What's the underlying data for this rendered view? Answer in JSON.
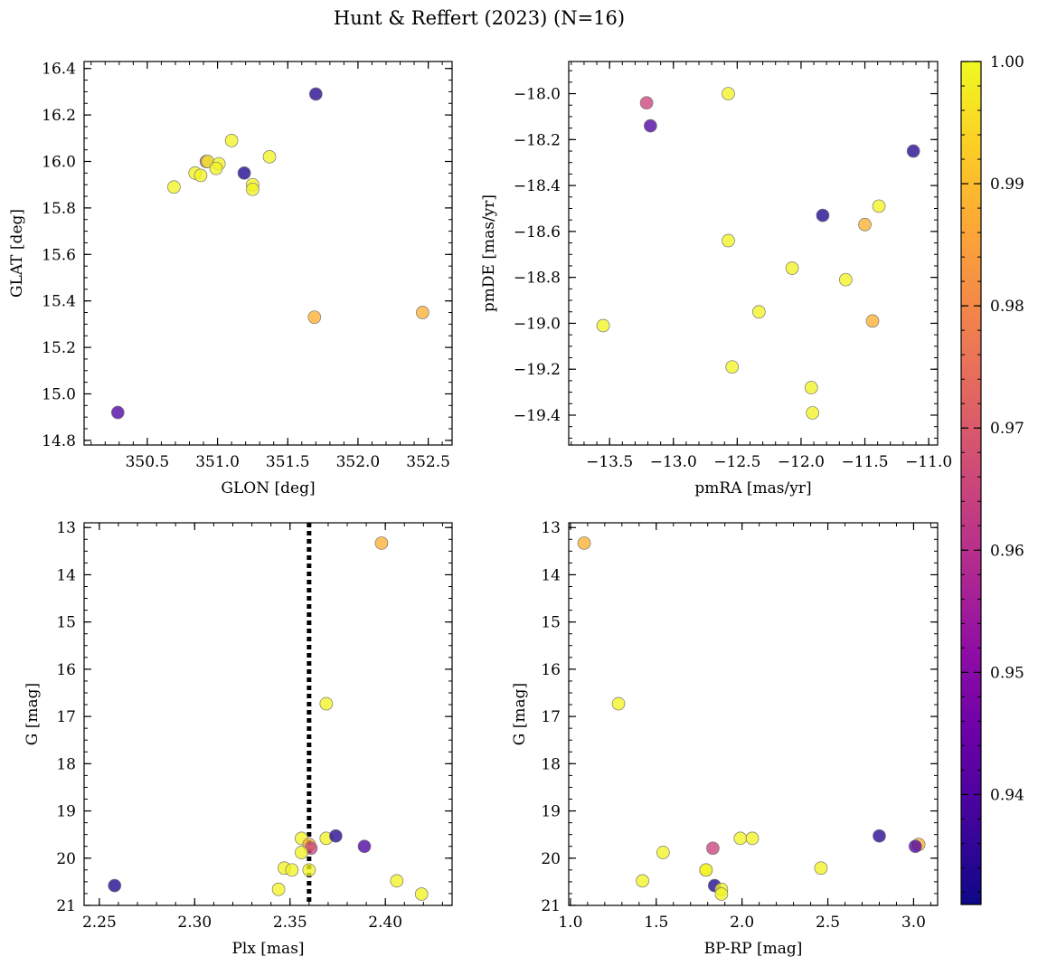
{
  "figure_title": "Hunt & Reffert (2023) (N=16)",
  "colors": {
    "cmap": [
      "#0d0887",
      "#41049d",
      "#6a00a8",
      "#8f0da4",
      "#b12a90",
      "#cb4679",
      "#e16462",
      "#f2844b",
      "#fca636",
      "#fcce25",
      "#f0f921"
    ],
    "marker_alpha": 0.78,
    "marker_edge": "#777777",
    "vline": "#000000"
  },
  "colorbar": {
    "min": 0.931,
    "max": 1.0,
    "ticks": [
      0.94,
      0.95,
      0.96,
      0.97,
      0.98,
      0.99,
      1.0
    ],
    "tick_labels": [
      "0.94",
      "0.95",
      "0.96",
      "0.97",
      "0.98",
      "0.99",
      "1.00"
    ]
  },
  "chart_data": [
    {
      "id": "tl",
      "type": "scatter",
      "xlabel": "GLON [deg]",
      "ylabel": "GLAT [deg]",
      "xlim": [
        350.05,
        352.67
      ],
      "ylim": [
        14.78,
        16.43
      ],
      "invert_y": false,
      "xticks": [
        350.5,
        351.0,
        351.5,
        352.0,
        352.5
      ],
      "xtick_labels": [
        "350.5",
        "351.0",
        "351.5",
        "352.0",
        "352.5"
      ],
      "xminor_step": 0.1,
      "yticks": [
        14.8,
        15.0,
        15.2,
        15.4,
        15.6,
        15.8,
        16.0,
        16.2,
        16.4
      ],
      "ytick_labels": [
        "14.8",
        "15.0",
        "15.2",
        "15.4",
        "15.6",
        "15.8",
        "16.0",
        "16.2",
        "16.4"
      ],
      "yminor_step": 0.05,
      "points": [
        {
          "x": 351.7,
          "y": 16.29,
          "c": 0.934
        },
        {
          "x": 350.29,
          "y": 14.92,
          "c": 0.94
        },
        {
          "x": 351.19,
          "y": 15.95,
          "c": 0.933
        },
        {
          "x": 351.69,
          "y": 15.33,
          "c": 0.988
        },
        {
          "x": 352.46,
          "y": 15.35,
          "c": 0.988
        },
        {
          "x": 350.92,
          "y": 16.0,
          "c": 0.965
        },
        {
          "x": 350.69,
          "y": 15.89,
          "c": 0.999
        },
        {
          "x": 350.84,
          "y": 15.95,
          "c": 0.999
        },
        {
          "x": 350.88,
          "y": 15.94,
          "c": 0.999
        },
        {
          "x": 350.93,
          "y": 16.0,
          "c": 0.999
        },
        {
          "x": 351.01,
          "y": 15.99,
          "c": 0.999
        },
        {
          "x": 350.99,
          "y": 15.97,
          "c": 0.999
        },
        {
          "x": 351.1,
          "y": 16.09,
          "c": 0.999
        },
        {
          "x": 351.25,
          "y": 15.9,
          "c": 0.999
        },
        {
          "x": 351.25,
          "y": 15.88,
          "c": 0.999
        },
        {
          "x": 351.37,
          "y": 16.02,
          "c": 0.999
        }
      ]
    },
    {
      "id": "tr",
      "type": "scatter",
      "xlabel": "pmRA [mas/yr]",
      "ylabel": "pmDE [mas/yr]",
      "xlim": [
        -13.82,
        -10.93
      ],
      "ylim": [
        -19.53,
        -17.86
      ],
      "invert_y": false,
      "xticks": [
        -13.5,
        -13.0,
        -12.5,
        -12.0,
        -11.5,
        -11.0
      ],
      "xtick_labels": [
        "−13.5",
        "−13.0",
        "−12.5",
        "−12.0",
        "−11.5",
        "−11.0"
      ],
      "xminor_step": 0.1,
      "yticks": [
        -19.4,
        -19.2,
        -19.0,
        -18.8,
        -18.6,
        -18.4,
        -18.2,
        -18.0
      ],
      "ytick_labels": [
        "−19.4",
        "−19.2",
        "−19.0",
        "−18.8",
        "−18.6",
        "−18.4",
        "−18.2",
        "−18.0"
      ],
      "yminor_step": 0.05,
      "points": [
        {
          "x": -12.57,
          "y": -18.0,
          "c": 0.999
        },
        {
          "x": -13.21,
          "y": -18.04,
          "c": 0.965
        },
        {
          "x": -13.18,
          "y": -18.14,
          "c": 0.94
        },
        {
          "x": -11.12,
          "y": -18.25,
          "c": 0.934
        },
        {
          "x": -11.83,
          "y": -18.53,
          "c": 0.933
        },
        {
          "x": -11.39,
          "y": -18.49,
          "c": 0.999
        },
        {
          "x": -11.5,
          "y": -18.57,
          "c": 0.988
        },
        {
          "x": -12.57,
          "y": -18.64,
          "c": 0.999
        },
        {
          "x": -12.07,
          "y": -18.76,
          "c": 0.999
        },
        {
          "x": -11.65,
          "y": -18.81,
          "c": 0.999
        },
        {
          "x": -12.33,
          "y": -18.95,
          "c": 0.999
        },
        {
          "x": -11.44,
          "y": -18.99,
          "c": 0.988
        },
        {
          "x": -13.55,
          "y": -19.01,
          "c": 0.999
        },
        {
          "x": -12.54,
          "y": -19.19,
          "c": 0.999
        },
        {
          "x": -11.92,
          "y": -19.28,
          "c": 0.999
        },
        {
          "x": -11.91,
          "y": -19.39,
          "c": 0.999
        }
      ]
    },
    {
      "id": "bl",
      "type": "scatter",
      "xlabel": "Plx [mas]",
      "ylabel": "G [mag]",
      "xlim": [
        2.242,
        2.435
      ],
      "ylim": [
        12.9,
        21.0
      ],
      "invert_y": true,
      "vline": 2.36,
      "xticks": [
        2.25,
        2.3,
        2.35,
        2.4
      ],
      "xtick_labels": [
        "2.25",
        "2.30",
        "2.35",
        "2.40"
      ],
      "xminor_step": 0.01,
      "yticks": [
        13,
        14,
        15,
        16,
        17,
        18,
        19,
        20,
        21
      ],
      "ytick_labels": [
        "13",
        "14",
        "15",
        "16",
        "17",
        "18",
        "19",
        "20",
        "21"
      ],
      "yminor_step": 0.25,
      "points": [
        {
          "x": 2.398,
          "y": 13.33,
          "c": 0.988
        },
        {
          "x": 2.369,
          "y": 16.73,
          "c": 0.999
        },
        {
          "x": 2.356,
          "y": 19.58,
          "c": 0.999
        },
        {
          "x": 2.369,
          "y": 19.58,
          "c": 0.999
        },
        {
          "x": 2.374,
          "y": 19.53,
          "c": 0.934
        },
        {
          "x": 2.36,
          "y": 19.71,
          "c": 0.988
        },
        {
          "x": 2.361,
          "y": 19.79,
          "c": 0.965
        },
        {
          "x": 2.389,
          "y": 19.75,
          "c": 0.94
        },
        {
          "x": 2.356,
          "y": 19.88,
          "c": 0.999
        },
        {
          "x": 2.347,
          "y": 20.21,
          "c": 0.999
        },
        {
          "x": 2.351,
          "y": 20.25,
          "c": 0.999
        },
        {
          "x": 2.36,
          "y": 20.25,
          "c": 0.999
        },
        {
          "x": 2.406,
          "y": 20.48,
          "c": 0.999
        },
        {
          "x": 2.258,
          "y": 20.58,
          "c": 0.933
        },
        {
          "x": 2.344,
          "y": 20.66,
          "c": 0.999
        },
        {
          "x": 2.419,
          "y": 20.76,
          "c": 0.999
        }
      ]
    },
    {
      "id": "br",
      "type": "scatter",
      "xlabel": "BP-RP [mag]",
      "ylabel": "G [mag]",
      "xlim": [
        0.99,
        3.14
      ],
      "ylim": [
        12.9,
        21.0
      ],
      "invert_y": true,
      "xticks": [
        1.0,
        1.5,
        2.0,
        2.5,
        3.0
      ],
      "xtick_labels": [
        "1.0",
        "1.5",
        "2.0",
        "2.5",
        "3.0"
      ],
      "xminor_step": 0.1,
      "yticks": [
        13,
        14,
        15,
        16,
        17,
        18,
        19,
        20,
        21
      ],
      "ytick_labels": [
        "13",
        "14",
        "15",
        "16",
        "17",
        "18",
        "19",
        "20",
        "21"
      ],
      "yminor_step": 0.25,
      "points": [
        {
          "x": 1.08,
          "y": 13.33,
          "c": 0.988
        },
        {
          "x": 1.28,
          "y": 16.73,
          "c": 0.999
        },
        {
          "x": 1.99,
          "y": 19.58,
          "c": 0.999
        },
        {
          "x": 2.06,
          "y": 19.58,
          "c": 0.999
        },
        {
          "x": 2.8,
          "y": 19.53,
          "c": 0.934
        },
        {
          "x": 3.03,
          "y": 19.71,
          "c": 0.988
        },
        {
          "x": 3.01,
          "y": 19.75,
          "c": 0.94
        },
        {
          "x": 1.83,
          "y": 19.79,
          "c": 0.965
        },
        {
          "x": 1.54,
          "y": 19.88,
          "c": 0.999
        },
        {
          "x": 2.46,
          "y": 20.21,
          "c": 0.999
        },
        {
          "x": 1.79,
          "y": 20.25,
          "c": 0.999
        },
        {
          "x": 1.79,
          "y": 20.25,
          "c": 0.999
        },
        {
          "x": 1.42,
          "y": 20.48,
          "c": 0.999
        },
        {
          "x": 1.84,
          "y": 20.58,
          "c": 0.933
        },
        {
          "x": 1.88,
          "y": 20.66,
          "c": 0.999
        },
        {
          "x": 1.88,
          "y": 20.76,
          "c": 0.999
        }
      ]
    }
  ]
}
